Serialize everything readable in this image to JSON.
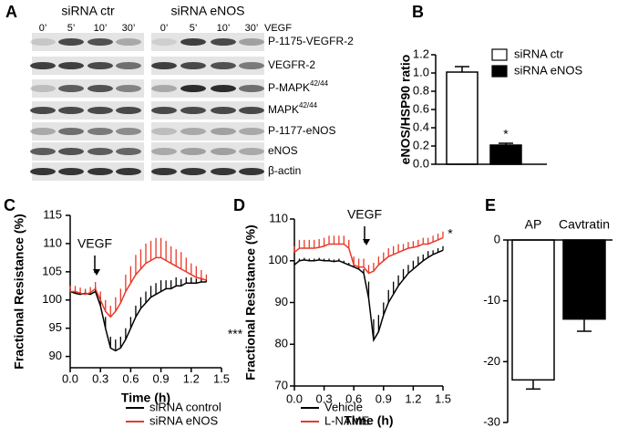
{
  "blot": {
    "panel": "A",
    "treatment": "VEGF",
    "groups": [
      {
        "name": "siRNA ctr",
        "lanes": [
          "0’",
          "5’",
          "10’",
          "30’"
        ]
      },
      {
        "name": "siRNA eNOS",
        "lanes": [
          "0’",
          "5’",
          "10’",
          "30’"
        ]
      }
    ],
    "rows": [
      {
        "label": "P-1175-VEGFR-2"
      },
      {
        "label": "VEGFR-2"
      },
      {
        "label": "P-MAPK",
        "sup": "42/44"
      },
      {
        "label": "MAPK",
        "sup": "42/44"
      },
      {
        "label": "P-1177-eNOS"
      },
      {
        "label": "eNOS"
      },
      {
        "label": "β-actin"
      }
    ]
  },
  "chart_data": [
    {
      "type": "bar",
      "panel": "B",
      "ylabel": "eNOS/HSP90 ratio",
      "series": [
        {
          "name": "siRNA ctr",
          "color": "#ffffff",
          "values": [
            1.01
          ],
          "errors": [
            0.06
          ]
        },
        {
          "name": "siRNA eNOS",
          "color": "#000000",
          "values": [
            0.21
          ],
          "errors": [
            0.02
          ]
        }
      ],
      "ylim": [
        0,
        1.2
      ],
      "yticks": [
        {
          "value": 0,
          "label": "0.0"
        },
        0.2,
        0.4,
        0.6,
        0.8,
        {
          "value": 1,
          "label": "1.0"
        },
        1.2
      ],
      "annotations": [
        "*"
      ],
      "legend": "upper right"
    },
    {
      "type": "line",
      "panel": "C",
      "xlabel": "Time (h)",
      "ylabel": "Fractional Resistance (%)",
      "x": [
        0,
        0.05,
        0.1,
        0.15,
        0.2,
        0.25,
        0.3,
        0.35,
        0.4,
        0.45,
        0.5,
        0.55,
        0.6,
        0.65,
        0.7,
        0.75,
        0.8,
        0.85,
        0.9,
        0.95,
        1.0,
        1.05,
        1.1,
        1.15,
        1.2,
        1.25,
        1.3,
        1.35
      ],
      "series": [
        {
          "name": "siRNA control",
          "color": "#000000",
          "values": [
            101.5,
            101.2,
            101,
            101.2,
            101,
            101.5,
            99,
            95,
            91.5,
            91,
            91.5,
            93,
            95,
            97,
            98.5,
            99.5,
            100.5,
            101,
            101.5,
            102,
            102,
            102.5,
            102.5,
            103,
            103,
            103,
            103.2,
            103.2
          ],
          "errors": [
            0.5,
            0.5,
            0.5,
            0.5,
            0.5,
            0.8,
            1.5,
            2,
            2,
            2,
            2,
            2,
            2,
            2,
            2,
            2,
            2,
            2,
            2,
            1.5,
            1.5,
            1.5,
            1.2,
            1,
            1,
            0.8,
            0.6,
            0.5
          ]
        },
        {
          "name": "siRNA eNOS",
          "color": "#e8392a",
          "values": [
            101.5,
            101.5,
            101.2,
            101,
            101.3,
            102,
            100,
            98,
            97,
            98,
            99.5,
            101.5,
            103,
            104.5,
            105.5,
            106.5,
            107,
            107.5,
            107.5,
            107,
            106.5,
            106,
            105.5,
            105,
            104.5,
            104,
            103.8,
            103.5
          ],
          "errors": [
            1,
            1,
            1,
            1,
            1,
            1.2,
            1.5,
            2,
            2,
            2.5,
            2.5,
            3,
            3,
            3.5,
            3.5,
            3.5,
            3.5,
            3.5,
            3.5,
            3.5,
            3,
            3,
            3,
            2.5,
            2,
            2,
            1.5,
            1
          ]
        }
      ],
      "xlim": [
        0,
        1.5
      ],
      "xticks": [
        {
          "value": 0,
          "label": "0.0"
        },
        0.3,
        0.6,
        0.9,
        1.2,
        1.5
      ],
      "ylim": [
        88,
        115
      ],
      "yticks": [
        90,
        95,
        100,
        105,
        110,
        115
      ],
      "annotations": [
        "VEGF",
        "***"
      ],
      "legend": "lower right"
    },
    {
      "type": "line",
      "panel": "D",
      "xlabel": "Time (h)",
      "ylabel": "Fractional Resistance (%)",
      "x": [
        0,
        0.05,
        0.1,
        0.15,
        0.2,
        0.25,
        0.3,
        0.35,
        0.4,
        0.45,
        0.5,
        0.55,
        0.6,
        0.65,
        0.7,
        0.75,
        0.8,
        0.85,
        0.9,
        0.95,
        1.0,
        1.05,
        1.1,
        1.15,
        1.2,
        1.25,
        1.3,
        1.35,
        1.4,
        1.45,
        1.5
      ],
      "series": [
        {
          "name": "Vehicle",
          "color": "#000000",
          "values": [
            99,
            100,
            100.2,
            100,
            100,
            100.2,
            100,
            100,
            99.8,
            100,
            99.5,
            99,
            98.5,
            98,
            97,
            91,
            81,
            83,
            87,
            90,
            92,
            94,
            95.5,
            97,
            98,
            99,
            100,
            100.8,
            101.5,
            102,
            102.5
          ],
          "errors": [
            0.5,
            0.5,
            0.5,
            0.5,
            0.5,
            0.5,
            0.5,
            0.5,
            0.5,
            0.5,
            0.5,
            0.5,
            0.5,
            0.5,
            1,
            4,
            5,
            4,
            3,
            3,
            3,
            2.5,
            2.5,
            2,
            2,
            2,
            1.5,
            1.5,
            1,
            1,
            1
          ]
        },
        {
          "name": "L-NAME",
          "color": "#e8392a",
          "values": [
            102,
            103,
            103,
            103,
            103,
            103.2,
            103.5,
            104,
            104,
            104,
            104,
            103,
            99,
            98.5,
            98.5,
            97,
            97.5,
            99,
            100,
            101,
            101.5,
            102,
            102.5,
            103,
            103.2,
            103.5,
            104,
            104,
            104.5,
            105,
            105.5
          ],
          "errors": [
            1.5,
            2,
            2,
            2,
            2,
            2,
            2,
            2,
            2,
            2,
            2,
            2,
            2,
            2,
            2,
            2,
            2,
            2,
            2,
            2,
            2,
            2,
            1.5,
            1.5,
            1.5,
            1.5,
            1.5,
            1.5,
            1.5,
            1.5,
            1.5
          ]
        }
      ],
      "xlim": [
        0,
        1.5
      ],
      "xticks": [
        {
          "value": 0,
          "label": "0.0"
        },
        0.3,
        0.6,
        0.9,
        1.2,
        1.5
      ],
      "ylim": [
        70,
        110
      ],
      "yticks": [
        70,
        80,
        90,
        100,
        110
      ],
      "annotations": [
        "VEGF",
        "*"
      ],
      "legend": "lower left"
    },
    {
      "type": "bar",
      "panel": "E",
      "categories": [
        "AP",
        "Cavtratin"
      ],
      "values": [
        -23,
        -13
      ],
      "errors": [
        1.5,
        2
      ],
      "colors": [
        "#ffffff",
        "#000000"
      ],
      "ylim": [
        -30,
        0
      ],
      "yticks": [
        0,
        -10,
        -20,
        -30
      ],
      "annotations": [
        "*"
      ]
    }
  ]
}
